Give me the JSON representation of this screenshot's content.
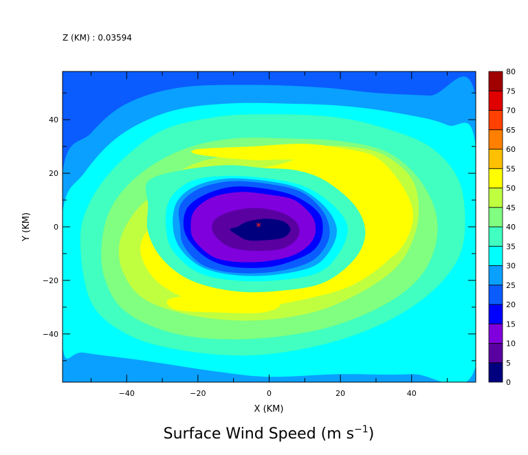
{
  "header": {
    "level_label": "Z (KM) : 0.03594"
  },
  "chart_data": {
    "type": "heatmap",
    "title": "Surface Wind Speed (m s",
    "title_superscript": "−1",
    "title_suffix": ")",
    "xlabel": "X (KM)",
    "ylabel": "Y (KM)",
    "xlim": [
      -58,
      58
    ],
    "ylim": [
      -58,
      58
    ],
    "x_ticks": [
      -40,
      -20,
      0,
      20,
      40
    ],
    "y_ticks": [
      -40,
      -20,
      0,
      20,
      40
    ],
    "storm_center_marker": {
      "x": -3,
      "y": 1
    },
    "colorbar": {
      "levels": [
        0,
        5,
        10,
        15,
        20,
        25,
        30,
        35,
        40,
        45,
        50,
        55,
        60,
        65,
        70,
        75,
        80
      ],
      "colors": [
        "#00007f",
        "#5a00a0",
        "#7f00dc",
        "#0000ff",
        "#0a5cff",
        "#0aa0ff",
        "#00ffff",
        "#40ffc0",
        "#80ff80",
        "#c0ff40",
        "#ffff00",
        "#ffc000",
        "#ff8000",
        "#ff4000",
        "#e00000",
        "#a00000"
      ]
    },
    "contours": [
      {
        "level": 20,
        "points": [
          [
            -58,
            58
          ],
          [
            -48,
            58
          ],
          [
            -40,
            53
          ],
          [
            -30,
            51
          ],
          [
            -15,
            52
          ],
          [
            0,
            53
          ],
          [
            18,
            53
          ],
          [
            35,
            51
          ],
          [
            55,
            50
          ],
          [
            58,
            50
          ],
          [
            58,
            -58
          ],
          [
            -58,
            -58
          ]
        ]
      },
      {
        "level": 25,
        "points": [
          [
            -58,
            20
          ],
          [
            -50,
            35
          ],
          [
            -40,
            46
          ],
          [
            -25,
            52
          ],
          [
            -5,
            53
          ],
          [
            15,
            52
          ],
          [
            30,
            50
          ],
          [
            45,
            49
          ],
          [
            58,
            48
          ],
          [
            58,
            -58
          ],
          [
            -52,
            -58
          ],
          [
            -58,
            -50
          ]
        ]
      },
      {
        "level": 30,
        "points": [
          [
            -58,
            5
          ],
          [
            -52,
            20
          ],
          [
            -42,
            34
          ],
          [
            -28,
            43
          ],
          [
            -12,
            46
          ],
          [
            5,
            46
          ],
          [
            22,
            45
          ],
          [
            38,
            42
          ],
          [
            50,
            38
          ],
          [
            58,
            30
          ],
          [
            58,
            -52
          ],
          [
            40,
            -55
          ],
          [
            20,
            -55
          ],
          [
            0,
            -56
          ],
          [
            -15,
            -54
          ],
          [
            -35,
            -50
          ],
          [
            -52,
            -47
          ],
          [
            -58,
            -45
          ]
        ]
      },
      {
        "level": 35,
        "points": [
          [
            -53,
            -5
          ],
          [
            -50,
            10
          ],
          [
            -42,
            24
          ],
          [
            -30,
            36
          ],
          [
            -15,
            41
          ],
          [
            0,
            42
          ],
          [
            18,
            41
          ],
          [
            32,
            37
          ],
          [
            45,
            30
          ],
          [
            53,
            18
          ],
          [
            55,
            2
          ],
          [
            53,
            -12
          ],
          [
            45,
            -25
          ],
          [
            32,
            -36
          ],
          [
            15,
            -44
          ],
          [
            -5,
            -48
          ],
          [
            -25,
            -46
          ],
          [
            -40,
            -40
          ],
          [
            -50,
            -28
          ]
        ]
      },
      {
        "level": 40,
        "points": [
          [
            -47,
            -6
          ],
          [
            -44,
            8
          ],
          [
            -36,
            20
          ],
          [
            -24,
            29
          ],
          [
            -10,
            33
          ],
          [
            5,
            33
          ],
          [
            20,
            32
          ],
          [
            33,
            28
          ],
          [
            42,
            18
          ],
          [
            47,
            4
          ],
          [
            46,
            -10
          ],
          [
            40,
            -22
          ],
          [
            28,
            -32
          ],
          [
            12,
            -39
          ],
          [
            -8,
            -42
          ],
          [
            -26,
            -40
          ],
          [
            -40,
            -32
          ],
          [
            -46,
            -20
          ]
        ]
      },
      {
        "level": 45,
        "points": [
          [
            -42,
            -6
          ],
          [
            -38,
            5
          ],
          [
            -30,
            15
          ],
          [
            -22,
            23
          ],
          [
            -10,
            27
          ],
          [
            2,
            29
          ],
          [
            10,
            30
          ],
          [
            22,
            30
          ],
          [
            32,
            27
          ],
          [
            40,
            18
          ],
          [
            42,
            6
          ],
          [
            40,
            -6
          ],
          [
            35,
            -16
          ],
          [
            25,
            -25
          ],
          [
            12,
            -32
          ],
          [
            -5,
            -35
          ],
          [
            -22,
            -33
          ],
          [
            -35,
            -27
          ],
          [
            -41,
            -17
          ]
        ]
      },
      {
        "level": 50,
        "points": [
          [
            -36,
            -6
          ],
          [
            -32,
            2
          ],
          [
            -25,
            10
          ],
          [
            -17,
            17
          ],
          [
            -6,
            21
          ],
          [
            2,
            23
          ],
          [
            10,
            26
          ],
          [
            20,
            27
          ],
          [
            30,
            24
          ],
          [
            36,
            16
          ],
          [
            40,
            6
          ],
          [
            38,
            -4
          ],
          [
            33,
            -13
          ],
          [
            23,
            -22
          ],
          [
            10,
            -27
          ],
          [
            -5,
            -30
          ],
          [
            -20,
            -28
          ],
          [
            -30,
            -22
          ],
          [
            -35,
            -14
          ]
        ]
      },
      {
        "level": 35,
        "points": [
          [
            -34,
            17
          ],
          [
            -25,
            21
          ],
          [
            -12,
            23
          ],
          [
            -2,
            22
          ],
          [
            8,
            21
          ],
          [
            16,
            17
          ],
          [
            24,
            8
          ],
          [
            27,
            -2
          ],
          [
            24,
            -12
          ],
          [
            15,
            -21
          ],
          [
            2,
            -24
          ],
          [
            -10,
            -24
          ],
          [
            -22,
            -20
          ],
          [
            -30,
            -12
          ],
          [
            -34,
            -2
          ],
          [
            -34,
            8
          ]
        ]
      },
      {
        "level": 30,
        "points": [
          [
            -28,
            10
          ],
          [
            -22,
            17
          ],
          [
            -12,
            19
          ],
          [
            0,
            18
          ],
          [
            10,
            15
          ],
          [
            18,
            8
          ],
          [
            22,
            0
          ],
          [
            20,
            -9
          ],
          [
            14,
            -17
          ],
          [
            2,
            -20
          ],
          [
            -10,
            -20
          ],
          [
            -20,
            -17
          ],
          [
            -27,
            -9
          ],
          [
            -29,
            0
          ]
        ]
      },
      {
        "level": 25,
        "points": [
          [
            -26,
            9
          ],
          [
            -21,
            15
          ],
          [
            -12,
            18
          ],
          [
            0,
            17
          ],
          [
            9,
            14
          ],
          [
            16,
            7
          ],
          [
            19,
            -1
          ],
          [
            17,
            -9
          ],
          [
            12,
            -15
          ],
          [
            1,
            -18
          ],
          [
            -10,
            -18
          ],
          [
            -19,
            -15
          ],
          [
            -25,
            -8
          ],
          [
            -27,
            0
          ]
        ]
      },
      {
        "level": 20,
        "points": [
          [
            -25,
            8
          ],
          [
            -20,
            14
          ],
          [
            -11,
            17
          ],
          [
            0,
            16
          ],
          [
            9,
            13
          ],
          [
            15,
            6
          ],
          [
            17,
            -2
          ],
          [
            15,
            -9
          ],
          [
            10,
            -14
          ],
          [
            0,
            -17
          ],
          [
            -11,
            -17
          ],
          [
            -19,
            -14
          ],
          [
            -24,
            -7
          ],
          [
            -25,
            0
          ]
        ]
      },
      {
        "level": 15,
        "points": [
          [
            -23,
            7
          ],
          [
            -18,
            12
          ],
          [
            -10,
            15
          ],
          [
            0,
            14
          ],
          [
            8,
            11
          ],
          [
            14,
            5
          ],
          [
            15,
            -2
          ],
          [
            13,
            -8
          ],
          [
            8,
            -12
          ],
          [
            0,
            -15
          ],
          [
            -10,
            -15
          ],
          [
            -17,
            -12
          ],
          [
            -22,
            -6
          ],
          [
            -24,
            0
          ]
        ]
      },
      {
        "level": 10,
        "points": [
          [
            -21,
            6
          ],
          [
            -16,
            11
          ],
          [
            -8,
            13
          ],
          [
            0,
            12
          ],
          [
            7,
            10
          ],
          [
            12,
            4
          ],
          [
            13,
            -2
          ],
          [
            11,
            -7
          ],
          [
            6,
            -11
          ],
          [
            -2,
            -13
          ],
          [
            -10,
            -13
          ],
          [
            -16,
            -11
          ],
          [
            -21,
            -5
          ],
          [
            -22,
            0
          ]
        ]
      },
      {
        "level": 5,
        "points": [
          [
            -15,
            3
          ],
          [
            -10,
            6
          ],
          [
            -3,
            7
          ],
          [
            4,
            5
          ],
          [
            8,
            1
          ],
          [
            8,
            -4
          ],
          [
            4,
            -8
          ],
          [
            -3,
            -9
          ],
          [
            -10,
            -8
          ],
          [
            -14,
            -5
          ],
          [
            -16,
            -1
          ]
        ]
      },
      {
        "level": 0,
        "points": [
          [
            -9,
            0
          ],
          [
            -6,
            2
          ],
          [
            -1,
            3
          ],
          [
            4,
            2
          ],
          [
            6,
            -1
          ],
          [
            4,
            -4
          ],
          [
            -1,
            -5
          ],
          [
            -6,
            -5
          ],
          [
            -9,
            -3
          ],
          [
            -11,
            -1
          ]
        ]
      }
    ],
    "yellow_bands": [
      {
        "level": 50,
        "points": [
          [
            -20,
            29
          ],
          [
            -5,
            30
          ],
          [
            10,
            31
          ],
          [
            22,
            29
          ],
          [
            30,
            26
          ],
          [
            36,
            18
          ],
          [
            40,
            8
          ],
          [
            40,
            0
          ],
          [
            37,
            -8
          ],
          [
            33,
            -12
          ],
          [
            30,
            -8
          ],
          [
            32,
            4
          ],
          [
            30,
            14
          ],
          [
            22,
            22
          ],
          [
            8,
            25
          ],
          [
            -5,
            25
          ],
          [
            -20,
            27
          ]
        ]
      },
      {
        "level": 50,
        "points": [
          [
            -28,
            -27
          ],
          [
            -16,
            -25
          ],
          [
            -5,
            -26
          ],
          [
            3,
            -29
          ],
          [
            -2,
            -32
          ],
          [
            -14,
            -32
          ],
          [
            -26,
            -31
          ]
        ]
      }
    ]
  }
}
